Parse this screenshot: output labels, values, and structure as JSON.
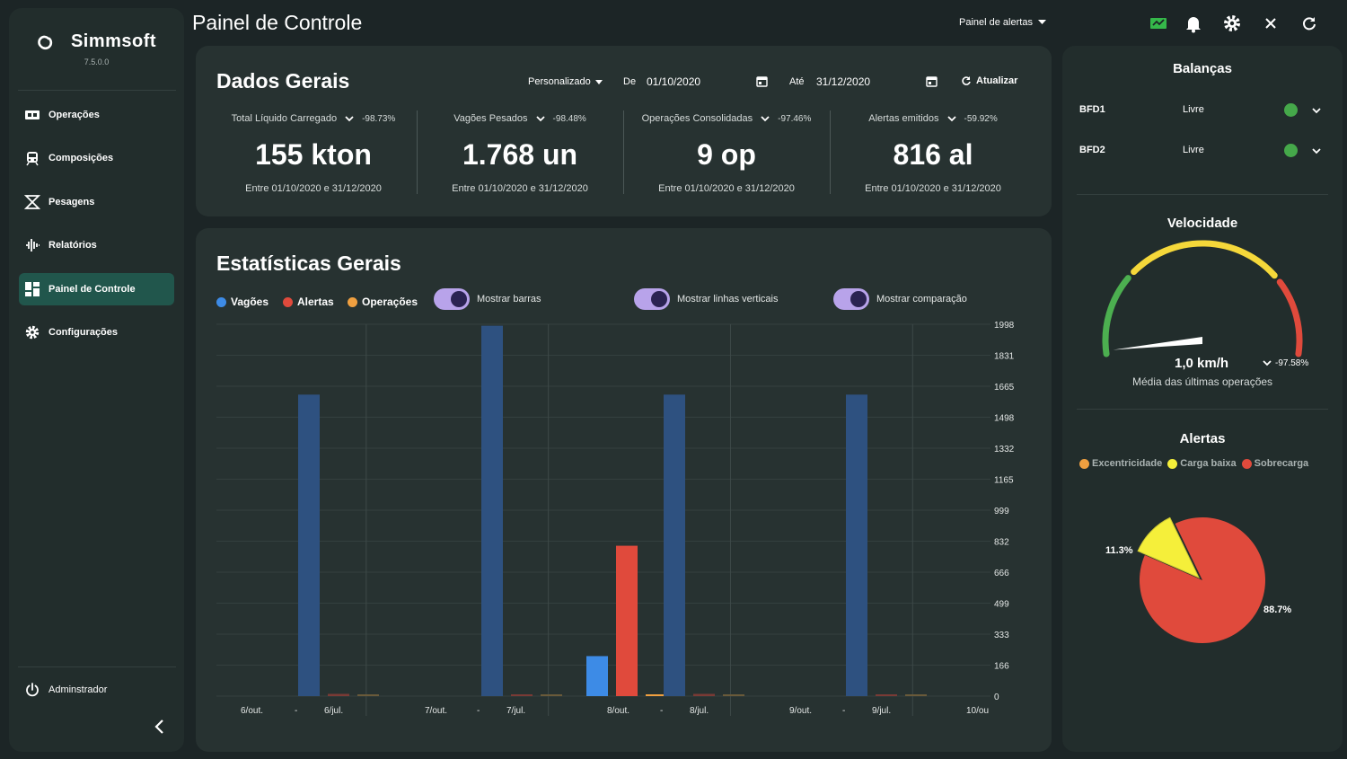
{
  "app": {
    "name": "Simmsoft",
    "version": "7.5.0.0"
  },
  "sidebar": {
    "items": [
      {
        "label": "Operações",
        "icon": "operations-icon"
      },
      {
        "label": "Composições",
        "icon": "train-icon"
      },
      {
        "label": "Pesagens",
        "icon": "scale-icon"
      },
      {
        "label": "Relatórios",
        "icon": "reports-icon"
      },
      {
        "label": "Painel de Controle",
        "icon": "dashboard-icon",
        "active": true
      },
      {
        "label": "Configurações",
        "icon": "gear-icon"
      }
    ],
    "user": "Adminstrador"
  },
  "header": {
    "title": "Painel de Controle",
    "alerts_dropdown": "Painel de alertas"
  },
  "dados_gerais": {
    "title": "Dados Gerais",
    "period": "Personalizado",
    "from_label": "De",
    "from_date": "01/10/2020",
    "to_label": "Até",
    "to_date": "31/12/2020",
    "refresh": "Atualizar",
    "stats": [
      {
        "label": "Total Líquido Carregado",
        "pct": "-98.73%",
        "value": "155 kton",
        "range": "Entre 01/10/2020 e 31/12/2020"
      },
      {
        "label": "Vagões Pesados",
        "pct": "-98.48%",
        "value": "1.768 un",
        "range": "Entre 01/10/2020 e 31/12/2020"
      },
      {
        "label": "Operações Consolidadas",
        "pct": "-97.46%",
        "value": "9 op",
        "range": "Entre 01/10/2020 e 31/12/2020"
      },
      {
        "label": "Alertas emitidos",
        "pct": "-59.92%",
        "value": "816 al",
        "range": "Entre 01/10/2020 e 31/12/2020"
      }
    ]
  },
  "estatisticas": {
    "title": "Estatísticas Gerais",
    "legend": [
      {
        "label": "Vagões",
        "color": "#3d8be6"
      },
      {
        "label": "Alertas",
        "color": "#e04a3c"
      },
      {
        "label": "Operações",
        "color": "#f0a040"
      }
    ],
    "toggles": [
      {
        "label": "Mostrar barras",
        "on": true
      },
      {
        "label": "Mostrar linhas verticais",
        "on": true
      },
      {
        "label": "Mostrar comparação",
        "on": true
      }
    ]
  },
  "chart_data": {
    "type": "bar",
    "categories": [
      "6/out.",
      "6/jul.",
      "7/out.",
      "7/jul.",
      "8/out.",
      "8/jul.",
      "9/out.",
      "9/jul."
    ],
    "group_labels": [
      "6/out.",
      "-",
      "6/jul.",
      "7/out.",
      "-",
      "7/jul.",
      "8/out.",
      "-",
      "8/jul.",
      "9/out.",
      "-",
      "9/jul.",
      "10/ou"
    ],
    "series": [
      {
        "name": "Vagões",
        "values": [
          0,
          1620,
          0,
          1990,
          215,
          1620,
          0,
          1620
        ],
        "color": "#3d8be6",
        "compare_color": "#2e5180"
      },
      {
        "name": "Alertas",
        "values": [
          0,
          12,
          0,
          6,
          808,
          12,
          0,
          5
        ],
        "color": "#e04a3c",
        "compare_color": "#7a3a35"
      },
      {
        "name": "Operações",
        "values": [
          0,
          4,
          0,
          4,
          2,
          4,
          0,
          4
        ],
        "color": "#f0a040",
        "compare_color": "#6a5a3a"
      }
    ],
    "y_ticks": [
      "1998",
      "1831",
      "1665",
      "1498",
      "1332",
      "1165",
      "999",
      "832",
      "666",
      "499",
      "333",
      "166",
      "0"
    ],
    "ylim": [
      0,
      1998
    ],
    "grid": true
  },
  "balancas": {
    "title": "Balanças",
    "items": [
      {
        "name": "BFD1",
        "status": "Livre"
      },
      {
        "name": "BFD2",
        "status": "Livre"
      }
    ]
  },
  "velocidade": {
    "title": "Velocidade",
    "value": "1,0 km/h",
    "pct": "-97.58%",
    "subtitle": "Média das últimas operações",
    "gauge_fraction": 0.02
  },
  "alertas": {
    "title": "Alertas",
    "legend": [
      {
        "label": "Excentricidade",
        "color": "#f0a040"
      },
      {
        "label": "Carga baixa",
        "color": "#f5ef3a"
      },
      {
        "label": "Sobrecarga",
        "color": "#e04a3c"
      }
    ],
    "pie": [
      {
        "label": "Carga baixa",
        "value": 11.3,
        "text": "11.3%",
        "color": "#f5ef3a"
      },
      {
        "label": "Sobrecarga",
        "value": 88.7,
        "text": "88.7%",
        "color": "#e04a3c"
      }
    ]
  }
}
